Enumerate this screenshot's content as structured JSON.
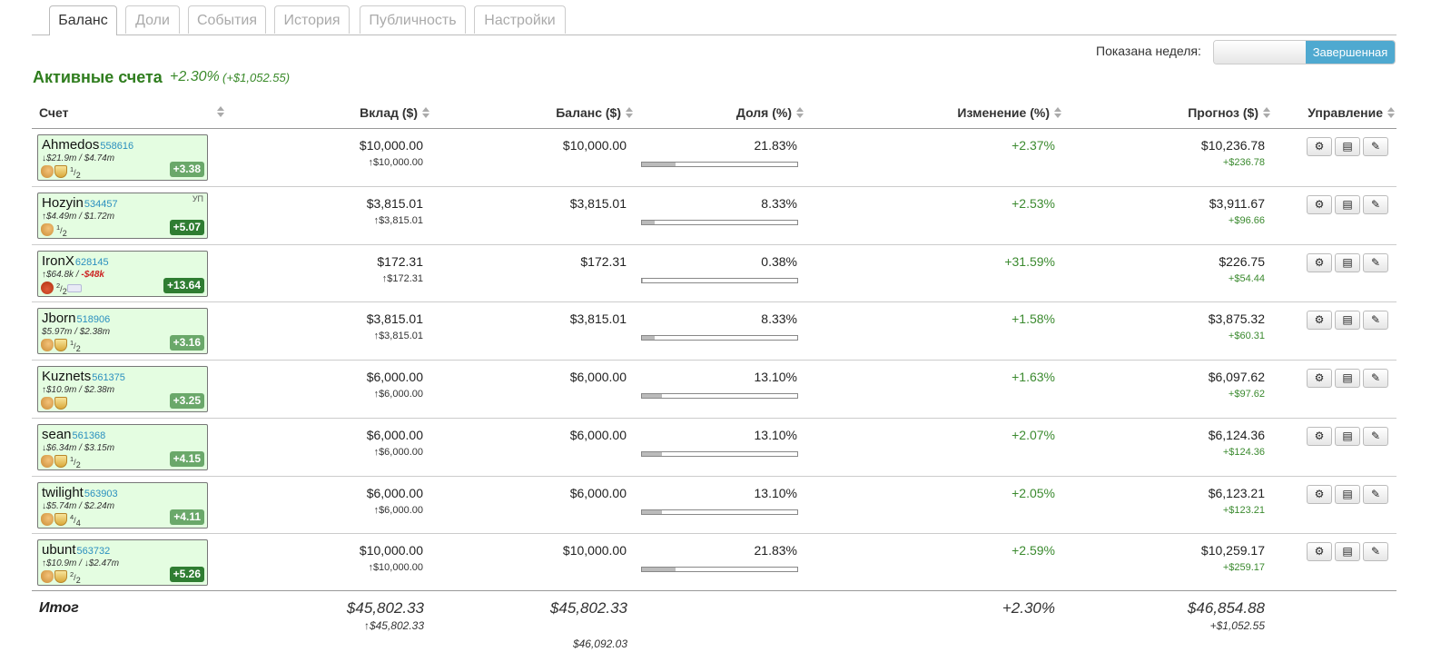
{
  "tabs": [
    {
      "label": "Баланс",
      "active": true
    },
    {
      "label": "Доли",
      "active": false
    },
    {
      "label": "События",
      "active": false
    },
    {
      "label": "История",
      "active": false
    },
    {
      "label": "Публичность",
      "active": false
    },
    {
      "label": "Настройки",
      "active": false
    }
  ],
  "week": {
    "label": "Показана неделя:",
    "value": "Завершенная"
  },
  "section": {
    "title": "Активные счета",
    "change_pct": "+2.30%",
    "change_abs": "(+$1,052.55)"
  },
  "columns": {
    "account": "Счет",
    "deposit": "Вклад ($)",
    "balance": "Баланс ($)",
    "share": "Доля (%)",
    "change": "Изменение (%)",
    "forecast": "Прогноз ($)",
    "manage": "Управление"
  },
  "rows": [
    {
      "name": "Ahmedos",
      "id": "558616",
      "rating": "↓$21.9m / $4.74m",
      "rating_neg": "",
      "icons": [
        "thumb",
        "shield"
      ],
      "frac_num": "1",
      "frac_den": "2",
      "badge": "+3.38",
      "badge_style": "light",
      "tag": "",
      "deposit": "$10,000.00",
      "deposit_sub": "↑$10,000.00",
      "balance": "$10,000.00",
      "share": "21.83%",
      "share_value": 21.83,
      "change": "+2.37%",
      "forecast": "$10,236.78",
      "forecast_sub": "+$236.78"
    },
    {
      "name": "Hozyin",
      "id": "534457",
      "rating": "↑$4.49m / $1.72m",
      "rating_neg": "",
      "icons": [
        "thumb"
      ],
      "frac_num": "1",
      "frac_den": "2",
      "badge": "+5.07",
      "badge_style": "dark",
      "tag": "УП",
      "deposit": "$3,815.01",
      "deposit_sub": "↑$3,815.01",
      "balance": "$3,815.01",
      "share": "8.33%",
      "share_value": 8.33,
      "change": "+2.53%",
      "forecast": "$3,911.67",
      "forecast_sub": "+$96.66"
    },
    {
      "name": "IronX",
      "id": "628145",
      "rating": "↑$64.8k / ",
      "rating_neg": "-$48k",
      "icons": [
        "bag"
      ],
      "frac_num": "2",
      "frac_den": "2",
      "card": true,
      "badge": "+13.64",
      "badge_style": "dark",
      "tag": "",
      "deposit": "$172.31",
      "deposit_sub": "↑$172.31",
      "balance": "$172.31",
      "share": "0.38%",
      "share_value": 0.38,
      "change": "+31.59%",
      "forecast": "$226.75",
      "forecast_sub": "+$54.44"
    },
    {
      "name": "Jborn",
      "id": "518906",
      "rating": "$5.97m / $2.38m",
      "rating_neg": "",
      "icons": [
        "thumb",
        "shield"
      ],
      "frac_num": "1",
      "frac_den": "2",
      "badge": "+3.16",
      "badge_style": "light",
      "tag": "",
      "deposit": "$3,815.01",
      "deposit_sub": "↑$3,815.01",
      "balance": "$3,815.01",
      "share": "8.33%",
      "share_value": 8.33,
      "change": "+1.58%",
      "forecast": "$3,875.32",
      "forecast_sub": "+$60.31"
    },
    {
      "name": "Kuznets",
      "id": "561375",
      "rating": "↑$10.9m / $2.38m",
      "rating_neg": "",
      "icons": [
        "thumb",
        "shield"
      ],
      "frac_num": "",
      "frac_den": "",
      "badge": "+3.25",
      "badge_style": "light",
      "tag": "",
      "deposit": "$6,000.00",
      "deposit_sub": "↑$6,000.00",
      "balance": "$6,000.00",
      "share": "13.10%",
      "share_value": 13.1,
      "change": "+1.63%",
      "forecast": "$6,097.62",
      "forecast_sub": "+$97.62"
    },
    {
      "name": "sean",
      "id": "561368",
      "rating": "↓$6.34m / $3.15m",
      "rating_neg": "",
      "icons": [
        "thumb",
        "shield"
      ],
      "frac_num": "1",
      "frac_den": "2",
      "badge": "+4.15",
      "badge_style": "light",
      "tag": "",
      "deposit": "$6,000.00",
      "deposit_sub": "↑$6,000.00",
      "balance": "$6,000.00",
      "share": "13.10%",
      "share_value": 13.1,
      "change": "+2.07%",
      "forecast": "$6,124.36",
      "forecast_sub": "+$124.36"
    },
    {
      "name": "twilight",
      "id": "563903",
      "rating": "↓$5.74m / $2.24m",
      "rating_neg": "",
      "icons": [
        "thumb",
        "shield"
      ],
      "frac_num": "4",
      "frac_den": "4",
      "badge": "+4.11",
      "badge_style": "light",
      "tag": "",
      "deposit": "$6,000.00",
      "deposit_sub": "↑$6,000.00",
      "balance": "$6,000.00",
      "share": "13.10%",
      "share_value": 13.1,
      "change": "+2.05%",
      "forecast": "$6,123.21",
      "forecast_sub": "+$123.21"
    },
    {
      "name": "ubunt",
      "id": "563732",
      "rating": "↑$10.9m / ↓$2.47m",
      "rating_neg": "",
      "icons": [
        "thumb",
        "shield"
      ],
      "frac_num": "2",
      "frac_den": "2",
      "badge": "+5.26",
      "badge_style": "dark",
      "tag": "",
      "deposit": "$10,000.00",
      "deposit_sub": "↑$10,000.00",
      "balance": "$10,000.00",
      "share": "21.83%",
      "share_value": 21.83,
      "change": "+2.59%",
      "forecast": "$10,259.17",
      "forecast_sub": "+$259.17"
    }
  ],
  "totals": {
    "label": "Итог",
    "deposit": "$45,802.33",
    "deposit_sub": "↑$45,802.33",
    "balance": "$45,802.33",
    "balance_sub": "$46,092.03",
    "change": "+2.30%",
    "forecast": "$46,854.88",
    "forecast_sub": "+$1,052.55"
  },
  "colors": {
    "accent_green": "#2f7d1e",
    "account_bg": "#e4fde1",
    "toggle_blue": "#4fa9d0"
  }
}
